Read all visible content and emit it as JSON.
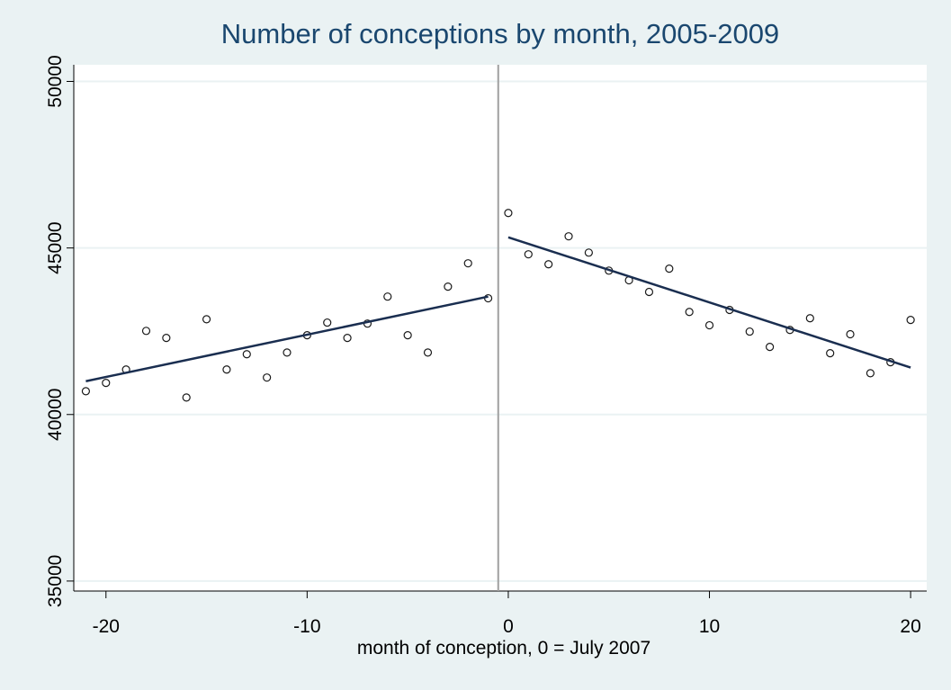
{
  "chart_data": {
    "type": "scatter",
    "title": "Number of conceptions by month, 2005-2009",
    "x_label": "month of conception, 0 = July 2007",
    "x": [
      -21,
      -20,
      -19,
      -18,
      -17,
      -16,
      -15,
      -14,
      -13,
      -12,
      -11,
      -10,
      -9,
      -8,
      -7,
      -6,
      -5,
      -4,
      -3,
      -2,
      -1,
      0,
      1,
      2,
      3,
      4,
      5,
      6,
      7,
      8,
      9,
      10,
      11,
      12,
      13,
      14,
      15,
      16,
      17,
      18,
      19,
      20
    ],
    "values": [
      40700,
      40950,
      41350,
      42510,
      42300,
      40510,
      42860,
      41350,
      41810,
      41110,
      41860,
      42380,
      42760,
      42300,
      42730,
      43540,
      42380,
      41860,
      43840,
      44540,
      43490,
      46050,
      44810,
      44510,
      45350,
      44860,
      44320,
      44030,
      43680,
      44380,
      43080,
      42680,
      43140,
      42490,
      42030,
      42540,
      42890,
      41840,
      42410,
      41240,
      41570,
      42840
    ],
    "color": "#1a1a1a",
    "fit_lines": [
      {
        "x": [
          -21,
          -1
        ],
        "values": [
          41000,
          43540
        ],
        "color": "#1a2e50"
      },
      {
        "x": [
          0,
          20
        ],
        "values": [
          45320,
          41410
        ],
        "color": "#1a2e50"
      }
    ],
    "vline": -0.5,
    "xlim": [
      -21.6,
      20.8
    ],
    "ylim": [
      34700,
      50500
    ],
    "xticks": [
      -20,
      -10,
      0,
      10,
      20
    ],
    "yticks": [
      35000,
      40000,
      45000,
      50000
    ],
    "grid": true
  }
}
